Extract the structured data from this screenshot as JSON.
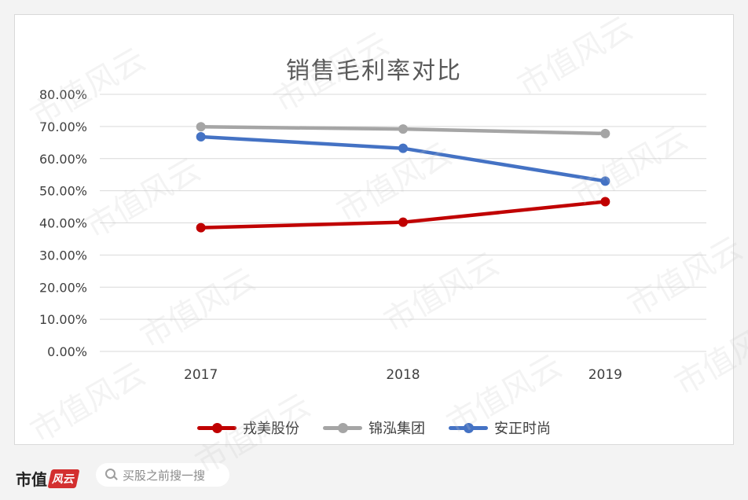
{
  "chart_data": {
    "type": "line",
    "title": "销售毛利率对比",
    "categories": [
      "2017",
      "2018",
      "2019"
    ],
    "ylim": [
      0,
      80
    ],
    "y_tick_labels": [
      "80.00%",
      "70.00%",
      "60.00%",
      "50.00%",
      "40.00%",
      "30.00%",
      "20.00%",
      "10.00%",
      "0.00%"
    ],
    "grid": true,
    "legend_position": "bottom",
    "series": [
      {
        "name": "戎美股份",
        "color": "#c00000",
        "values": [
          38.5,
          40.2,
          46.6
        ]
      },
      {
        "name": "锦泓集团",
        "color": "#a5a5a5",
        "values": [
          69.9,
          69.2,
          67.8
        ]
      },
      {
        "name": "安正时尚",
        "color": "#4472c4",
        "values": [
          66.8,
          63.2,
          53.0
        ]
      }
    ]
  },
  "footer": {
    "brand": "市值",
    "brand_badge": "风云",
    "search_placeholder": "买股之前搜一搜"
  },
  "watermark": "市值风云"
}
